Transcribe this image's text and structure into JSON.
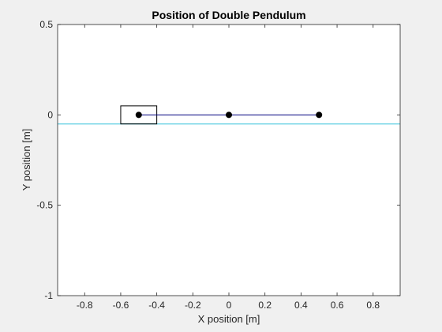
{
  "chart_data": {
    "type": "line",
    "title": "Position of Double Pendulum",
    "xlabel": "X position [m]",
    "ylabel": "Y position [m]",
    "xlim": [
      -0.95,
      0.95
    ],
    "ylim": [
      -1,
      0.5
    ],
    "xticks": [
      -0.8,
      -0.6,
      -0.4,
      -0.2,
      0,
      0.2,
      0.4,
      0.6,
      0.8
    ],
    "xtick_labels": [
      "-0.8",
      "-0.6",
      "-0.4",
      "-0.2",
      "0",
      "0.2",
      "0.4",
      "0.6",
      "0.8"
    ],
    "yticks": [
      0.5,
      0,
      -0.5,
      -1
    ],
    "ytick_labels": [
      "0.5",
      "0",
      "-0.5",
      "-1"
    ],
    "grid": false,
    "pendulum": {
      "points": [
        [
          -0.5,
          0
        ],
        [
          0,
          0
        ],
        [
          0.5,
          0
        ]
      ],
      "line_color": "#00007f",
      "marker_color": "#000000"
    },
    "cart": {
      "x_range": [
        -0.6,
        -0.4
      ],
      "y_range": [
        -0.05,
        0.05
      ],
      "color": "#000000"
    },
    "ground": {
      "y": -0.05,
      "color": "#7fd8e8"
    }
  }
}
